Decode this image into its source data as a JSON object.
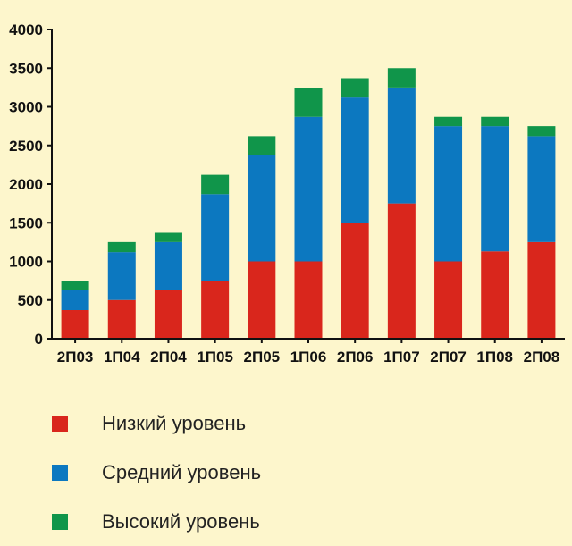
{
  "chart_data": {
    "type": "bar",
    "stacked": true,
    "categories": [
      "2П03",
      "1П04",
      "2П04",
      "1П05",
      "2П05",
      "1П06",
      "2П06",
      "1П07",
      "2П07",
      "1П08",
      "2П08"
    ],
    "series": [
      {
        "name": "Низкий уровень",
        "color": "#D9261C",
        "values": [
          370,
          500,
          630,
          750,
          1000,
          1000,
          1500,
          1750,
          1000,
          1130,
          1250
        ]
      },
      {
        "name": "Средний уровень",
        "color": "#0C78C0",
        "values": [
          260,
          620,
          620,
          1120,
          1370,
          1870,
          1620,
          1500,
          1750,
          1620,
          1370
        ]
      },
      {
        "name": "Высокий уровень",
        "color": "#10954A",
        "values": [
          120,
          130,
          120,
          250,
          250,
          370,
          250,
          250,
          120,
          120,
          130
        ]
      }
    ],
    "yticks": [
      "0",
      "500",
      "1000",
      "1500",
      "2000",
      "2500",
      "3000",
      "3500",
      "4000"
    ],
    "ylim": [
      0,
      4000
    ],
    "grid": false,
    "legend_position": "bottom"
  }
}
